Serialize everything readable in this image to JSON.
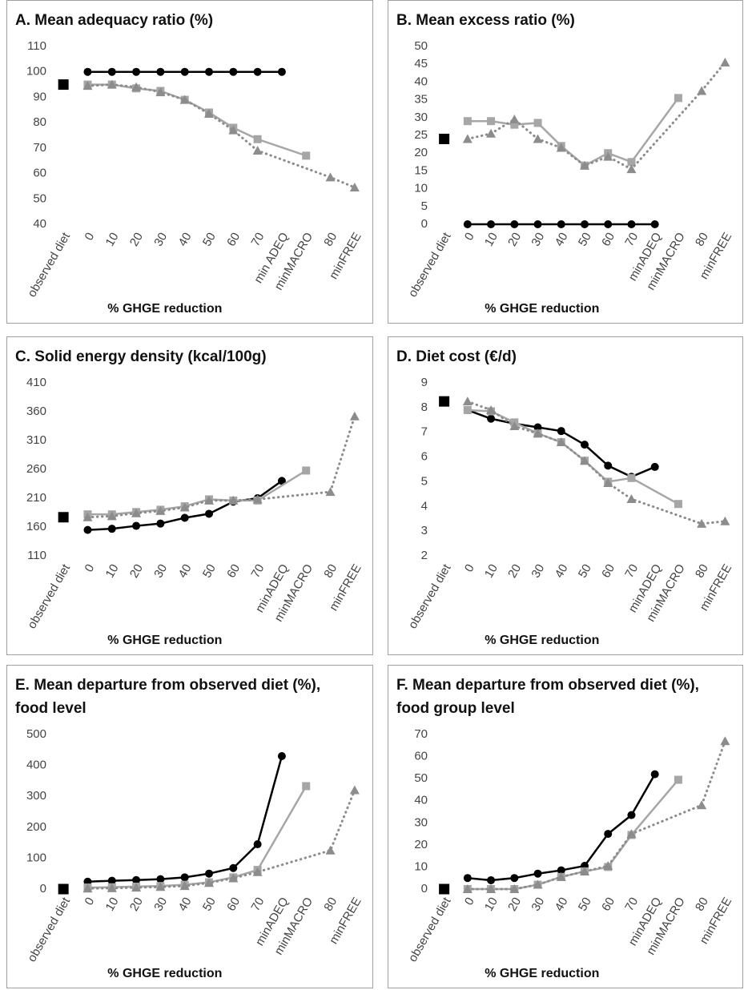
{
  "chart_data": [
    {
      "type": "line",
      "title": "A. Mean adequacy ratio (%)",
      "x_label": "% GHGE reduction",
      "categories": [
        "observed diet",
        "0",
        "10",
        "20",
        "30",
        "40",
        "50",
        "60",
        "70",
        "min ADEQ",
        "minMACRO",
        "80",
        "minFREE"
      ],
      "ylim": [
        40,
        110
      ],
      "yticks": [
        40,
        50,
        60,
        70,
        80,
        90,
        100,
        110
      ],
      "grid": false,
      "connect_gaps": true,
      "series": [
        {
          "color": "#000000",
          "marker": "square",
          "line_style": "none",
          "values": [
            95,
            null,
            null,
            null,
            null,
            null,
            null,
            null,
            null,
            null,
            null,
            null,
            null
          ]
        },
        {
          "color": "#000000",
          "marker": "circle",
          "line_style": "solid",
          "values": [
            null,
            100,
            100,
            100,
            100,
            100,
            100,
            100,
            100,
            100,
            null,
            null,
            null
          ]
        },
        {
          "color": "#a6a6a6",
          "marker": "square",
          "line_style": "solid",
          "values": [
            null,
            95,
            95,
            93.5,
            92.5,
            89,
            84,
            78,
            73.5,
            null,
            67,
            null,
            null
          ]
        },
        {
          "color": "#8c8c8c",
          "marker": "triangle",
          "line_style": "dotted",
          "values": [
            null,
            94.5,
            95,
            94,
            92,
            89,
            83.5,
            77,
            69,
            null,
            null,
            58.5,
            54.5
          ]
        }
      ]
    },
    {
      "type": "line",
      "title": "B. Mean excess ratio (%)",
      "x_label": "% GHGE reduction",
      "categories": [
        "observed diet",
        "0",
        "10",
        "20",
        "30",
        "40",
        "50",
        "60",
        "70",
        "minADEQ",
        "minMACRO",
        "80",
        "minFREE"
      ],
      "ylim": [
        0,
        50
      ],
      "yticks": [
        0,
        5,
        10,
        15,
        20,
        25,
        30,
        35,
        40,
        45,
        50
      ],
      "grid": false,
      "connect_gaps": true,
      "series": [
        {
          "color": "#000000",
          "marker": "square",
          "line_style": "none",
          "values": [
            24,
            null,
            null,
            null,
            null,
            null,
            null,
            null,
            null,
            null,
            null,
            null,
            null
          ]
        },
        {
          "color": "#000000",
          "marker": "circle",
          "line_style": "solid",
          "values": [
            null,
            0,
            0,
            0,
            0,
            0,
            0,
            0,
            0,
            0,
            null,
            null,
            null
          ]
        },
        {
          "color": "#a6a6a6",
          "marker": "square",
          "line_style": "solid",
          "values": [
            null,
            29,
            29,
            28,
            28.5,
            22,
            16.5,
            20,
            17.5,
            null,
            35.5,
            null,
            null
          ]
        },
        {
          "color": "#8c8c8c",
          "marker": "triangle",
          "line_style": "dotted",
          "values": [
            null,
            24,
            25.5,
            29.5,
            24,
            21.5,
            16.5,
            19,
            15.5,
            null,
            null,
            37.5,
            45.5
          ]
        }
      ]
    },
    {
      "type": "line",
      "title": "C. Solid energy density (kcal/100g)",
      "x_label": "% GHGE reduction",
      "categories": [
        "observed diet",
        "0",
        "10",
        "20",
        "30",
        "40",
        "50",
        "60",
        "70",
        "minADEQ",
        "minMACRO",
        "80",
        "minFREE"
      ],
      "ylim": [
        110,
        410
      ],
      "yticks": [
        110,
        160,
        210,
        260,
        310,
        360,
        410
      ],
      "grid": false,
      "connect_gaps": true,
      "series": [
        {
          "color": "#000000",
          "marker": "square",
          "line_style": "none",
          "values": [
            177,
            null,
            null,
            null,
            null,
            null,
            null,
            null,
            null,
            null,
            null,
            null,
            null
          ]
        },
        {
          "color": "#000000",
          "marker": "circle",
          "line_style": "solid",
          "values": [
            null,
            155,
            157,
            162,
            166,
            176,
            183,
            204,
            210,
            240,
            null,
            null,
            null
          ]
        },
        {
          "color": "#a6a6a6",
          "marker": "square",
          "line_style": "solid",
          "values": [
            null,
            182,
            182,
            186,
            190,
            196,
            208,
            206,
            206,
            null,
            258,
            null,
            null
          ]
        },
        {
          "color": "#8c8c8c",
          "marker": "triangle",
          "line_style": "dotted",
          "values": [
            null,
            177,
            179,
            184,
            188,
            194,
            206,
            206,
            208,
            null,
            null,
            221,
            352
          ]
        }
      ]
    },
    {
      "type": "line",
      "title": "D. Diet cost (€/d)",
      "x_label": "% GHGE reduction",
      "categories": [
        "observed diet",
        "0",
        "10",
        "20",
        "30",
        "40",
        "50",
        "60",
        "70",
        "minADEQ",
        "minMACRO",
        "80",
        "minFREE"
      ],
      "ylim": [
        2,
        9
      ],
      "yticks": [
        2,
        3,
        4,
        5,
        6,
        7,
        8,
        9
      ],
      "grid": false,
      "connect_gaps": true,
      "series": [
        {
          "color": "#000000",
          "marker": "square",
          "line_style": "none",
          "values": [
            8.25,
            null,
            null,
            null,
            null,
            null,
            null,
            null,
            null,
            null,
            null,
            null,
            null
          ]
        },
        {
          "color": "#000000",
          "marker": "circle",
          "line_style": "solid",
          "values": [
            null,
            7.9,
            7.55,
            7.35,
            7.2,
            7.05,
            6.5,
            5.65,
            5.2,
            5.6,
            null,
            null,
            null
          ]
        },
        {
          "color": "#a6a6a6",
          "marker": "square",
          "line_style": "solid",
          "values": [
            null,
            7.9,
            7.85,
            7.4,
            6.95,
            6.6,
            5.85,
            5.0,
            5.15,
            null,
            4.1,
            null,
            null
          ]
        },
        {
          "color": "#8c8c8c",
          "marker": "triangle",
          "line_style": "dotted",
          "values": [
            null,
            8.25,
            7.9,
            7.25,
            6.95,
            6.6,
            5.85,
            4.95,
            4.3,
            null,
            null,
            3.3,
            3.4
          ]
        }
      ]
    },
    {
      "type": "line",
      "title": "E. Mean departure from observed diet (%), food level",
      "x_label": "% GHGE reduction",
      "categories": [
        "observed diet",
        "0",
        "10",
        "20",
        "30",
        "40",
        "50",
        "60",
        "70",
        "minADEQ",
        "minMACRO",
        "80",
        "minFREE"
      ],
      "ylim": [
        0,
        500
      ],
      "yticks": [
        0,
        100,
        200,
        300,
        400,
        500
      ],
      "grid": false,
      "connect_gaps": true,
      "series": [
        {
          "color": "#000000",
          "marker": "square",
          "line_style": "none",
          "values": [
            0,
            null,
            null,
            null,
            null,
            null,
            null,
            null,
            null,
            null,
            null,
            null,
            null
          ]
        },
        {
          "color": "#000000",
          "marker": "circle",
          "line_style": "solid",
          "values": [
            null,
            24,
            27,
            29,
            32,
            38,
            50,
            68,
            145,
            430,
            null,
            null,
            null
          ]
        },
        {
          "color": "#a6a6a6",
          "marker": "square",
          "line_style": "solid",
          "values": [
            null,
            5,
            6,
            8,
            10,
            14,
            22,
            38,
            62,
            null,
            333,
            null,
            null
          ]
        },
        {
          "color": "#8c8c8c",
          "marker": "triangle",
          "line_style": "dotted",
          "values": [
            null,
            2,
            3,
            5,
            7,
            10,
            20,
            35,
            55,
            null,
            null,
            125,
            320
          ]
        }
      ]
    },
    {
      "type": "line",
      "title": "F. Mean departure from observed diet (%), food group level",
      "x_label": "% GHGE reduction",
      "categories": [
        "observed diet",
        "0",
        "10",
        "20",
        "30",
        "40",
        "50",
        "60",
        "70",
        "minADEQ",
        "minMACRO",
        "80",
        "minFREE"
      ],
      "ylim": [
        0,
        70
      ],
      "yticks": [
        0,
        10,
        20,
        30,
        40,
        50,
        60,
        70
      ],
      "grid": false,
      "connect_gaps": true,
      "series": [
        {
          "color": "#000000",
          "marker": "square",
          "line_style": "none",
          "values": [
            0,
            null,
            null,
            null,
            null,
            null,
            null,
            null,
            null,
            null,
            null,
            null,
            null
          ]
        },
        {
          "color": "#000000",
          "marker": "circle",
          "line_style": "solid",
          "values": [
            null,
            5,
            4,
            5,
            7,
            8.5,
            10.5,
            25,
            33.5,
            52,
            null,
            null,
            null
          ]
        },
        {
          "color": "#a6a6a6",
          "marker": "square",
          "line_style": "solid",
          "values": [
            null,
            0,
            0,
            0,
            2,
            5.5,
            8,
            10,
            24.5,
            null,
            49.5,
            null,
            null
          ]
        },
        {
          "color": "#8c8c8c",
          "marker": "triangle",
          "line_style": "dotted",
          "values": [
            null,
            0,
            0,
            0,
            2,
            5.5,
            8,
            10.5,
            25,
            null,
            null,
            38,
            67
          ]
        }
      ]
    }
  ]
}
